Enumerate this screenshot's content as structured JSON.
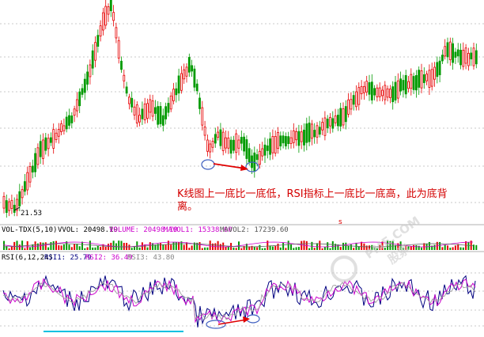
{
  "chart_data": [
    {
      "type": "candlestick",
      "panel": "price",
      "grid": "horizontal dashed",
      "low_marker": "21.53",
      "bar_colors": {
        "up": "#e60000",
        "down": "#009a00"
      },
      "x_marker": "s",
      "annotation": "K线图上一底比一底低，RSI指标上一底比一底高，此为底背离。",
      "annotation_lines": [
        "K线图上一底比一底低，RSI指标上一底比一底高，此为底背",
        "离。"
      ],
      "annotation_color": "#e00000",
      "trend_arrow": "from first low to second (lower) low"
    },
    {
      "type": "bar",
      "panel": "volume",
      "header": {
        "name": "VOL-TDX(5,10)",
        "vvol": "VVOL: 20498.19",
        "volume": "VOLUME: 20498.19",
        "mavol1": "MAVOL1: 15338.00",
        "mavol2": "MAVOL2: 17239.60"
      },
      "colors": {
        "volume": "#cc00cc",
        "mavol1": "#cc00cc",
        "mavol2": "#666666"
      }
    },
    {
      "type": "line",
      "panel": "rsi",
      "header": {
        "name": "RSI(6,12,24)",
        "rsi1": "RSI1: 25.79",
        "rsi2": "RSI2: 36.49",
        "rsi3": "RSI3: 43.80"
      },
      "series_colors": {
        "rsi1": "#000080",
        "rsi2": "#cc00cc",
        "rsi3": "#a0a0a0"
      },
      "trend_arrow": "from first RSI low to second (higher) RSI low"
    }
  ],
  "watermark": {
    "text_top": "PME.COM",
    "text_bottom": "股票"
  }
}
